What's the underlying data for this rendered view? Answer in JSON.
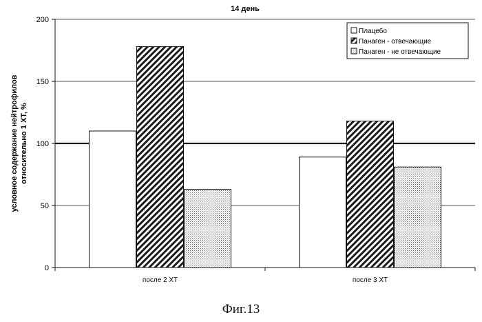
{
  "chart_data": {
    "type": "bar",
    "title": "14 день",
    "ylabel_lines": [
      "условное содержание нейтрофилов",
      "относительно 1 ХТ, %"
    ],
    "xlabel": "",
    "categories": [
      "после 2 ХТ",
      "после 3 ХТ"
    ],
    "series": [
      {
        "name": "Плацебо",
        "values": [
          110,
          89
        ],
        "fill": "plain"
      },
      {
        "name": "Панаген - отвечающие",
        "values": [
          178,
          118
        ],
        "fill": "hatch"
      },
      {
        "name": "Панаген - не отвечающие",
        "values": [
          63,
          81
        ],
        "fill": "dots"
      }
    ],
    "ylim": [
      0,
      200
    ],
    "yticks": [
      "0",
      "50",
      "100",
      "150",
      "200"
    ],
    "ytick_values": [
      0,
      50,
      100,
      150,
      200
    ],
    "reference_line": 100,
    "grid": true,
    "legend_position": "top-right"
  },
  "caption": "Фиг.13"
}
